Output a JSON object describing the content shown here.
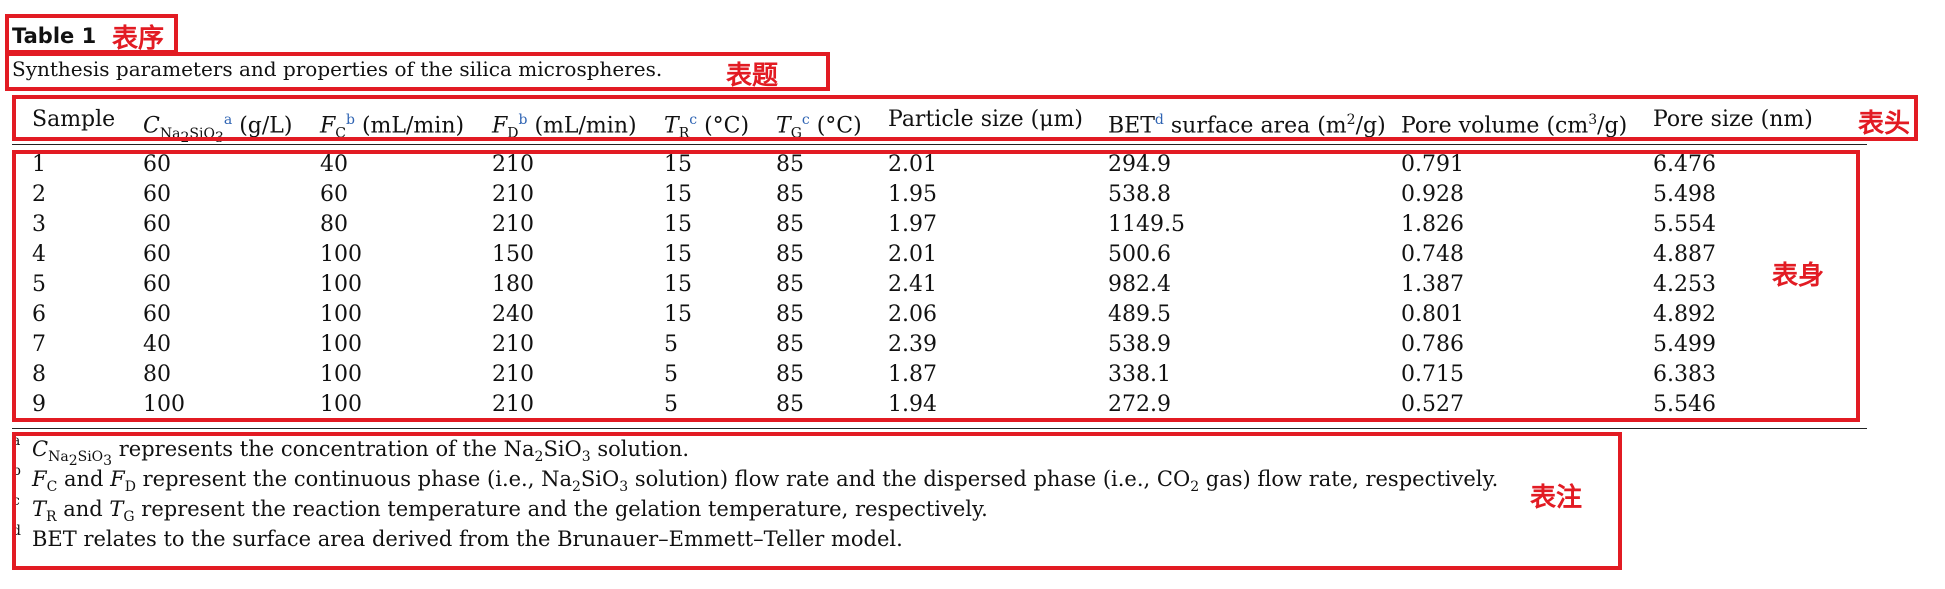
{
  "table": {
    "number": "Table 1",
    "title": "Synthesis parameters and properties of the silica microspheres.",
    "headers": {
      "sample": "Sample",
      "c_main": "C",
      "c_sub": "Na",
      "c_sub2": "2",
      "c_sub3": "SiO",
      "c_sub4": "3",
      "c_ref": "a",
      "c_unit": "(g/L)",
      "fc_main": "F",
      "fc_sub": "C",
      "fc_ref": "b",
      "fc_unit": "(mL/min)",
      "fd_main": "F",
      "fd_sub": "D",
      "fd_ref": "b",
      "fd_unit": "(mL/min)",
      "tr_main": "T",
      "tr_sub": "R",
      "tr_ref": "c",
      "tr_unit": "(°C)",
      "tg_main": "T",
      "tg_sub": "G",
      "tg_ref": "c",
      "tg_unit": "(°C)",
      "particle": "Particle size (μm)",
      "bet_main": "BET",
      "bet_ref": "d",
      "bet_text": "surface area (m",
      "bet_sup": "2",
      "bet_end": "/g)",
      "pv_text": "Pore volume (cm",
      "pv_sup": "3",
      "pv_end": "/g)",
      "ps": "Pore size (nm)"
    },
    "rows": [
      [
        "1",
        "60",
        "40",
        "210",
        "15",
        "85",
        "2.01",
        "294.9",
        "0.791",
        "6.476"
      ],
      [
        "2",
        "60",
        "60",
        "210",
        "15",
        "85",
        "1.95",
        "538.8",
        "0.928",
        "5.498"
      ],
      [
        "3",
        "60",
        "80",
        "210",
        "15",
        "85",
        "1.97",
        "1149.5",
        "1.826",
        "5.554"
      ],
      [
        "4",
        "60",
        "100",
        "150",
        "15",
        "85",
        "2.01",
        "500.6",
        "0.748",
        "4.887"
      ],
      [
        "5",
        "60",
        "100",
        "180",
        "15",
        "85",
        "2.41",
        "982.4",
        "1.387",
        "4.253"
      ],
      [
        "6",
        "60",
        "100",
        "240",
        "15",
        "85",
        "2.06",
        "489.5",
        "0.801",
        "4.892"
      ],
      [
        "7",
        "40",
        "100",
        "210",
        "5",
        "85",
        "2.39",
        "538.9",
        "0.786",
        "5.499"
      ],
      [
        "8",
        "80",
        "100",
        "210",
        "5",
        "85",
        "1.87",
        "338.1",
        "0.715",
        "6.383"
      ],
      [
        "9",
        "100",
        "100",
        "210",
        "5",
        "85",
        "1.94",
        "272.9",
        "0.527",
        "5.546"
      ]
    ],
    "footnotes": {
      "a_mark": "a",
      "a_c": "C",
      "a_sub1": "Na",
      "a_sub2": "2",
      "a_sub3": "SiO",
      "a_sub4": "3",
      "a_text1": " represents the concentration of the Na",
      "a_sub5": "2",
      "a_text2": "SiO",
      "a_sub6": "3",
      "a_text3": " solution.",
      "b_mark": "b",
      "b_f1": "F",
      "b_s1": "C",
      "b_t1": " and ",
      "b_f2": "F",
      "b_s2": "D",
      "b_t2": " represent the continuous phase (i.e., Na",
      "b_s3": "2",
      "b_t3": "SiO",
      "b_s4": "3",
      "b_t4": " solution) flow rate and the dispersed phase (i.e., CO",
      "b_s5": "2",
      "b_t5": " gas) flow rate, respectively.",
      "c_mark": "c",
      "c_t1": "T",
      "c_s1": "R",
      "c_and": " and ",
      "c_t2": "T",
      "c_s2": "G",
      "c_text": " represent the reaction temperature and the gelation temperature, respectively.",
      "d_mark": "d",
      "d_text": "BET relates to the surface area derived from the Brunauer–Emmett–Teller model."
    }
  },
  "annotations": {
    "color": "#e21b23",
    "number_label": "表序",
    "title_label": "表题",
    "header_label": "表头",
    "body_label": "表身",
    "notes_label": "表注"
  }
}
